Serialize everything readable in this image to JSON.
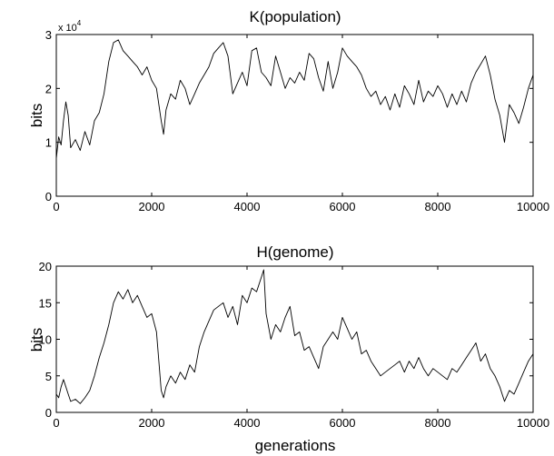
{
  "chart_data": [
    {
      "type": "line",
      "title": "K(population)",
      "xlabel": "",
      "ylabel": "bits",
      "y_multiplier_base": "x 10",
      "y_multiplier_exp": "4",
      "xlim": [
        0,
        10000
      ],
      "ylim": [
        0,
        30000
      ],
      "xticks": [
        0,
        2000,
        4000,
        6000,
        8000,
        10000
      ],
      "yticks": [
        0,
        10000,
        20000,
        30000
      ],
      "xtick_labels": [
        "0",
        "2000",
        "4000",
        "6000",
        "8000",
        "10000"
      ],
      "ytick_labels": [
        "0",
        "1",
        "2",
        "3"
      ],
      "grid": false,
      "series": [
        {
          "x": [
            0,
            50,
            100,
            150,
            200,
            250,
            300,
            400,
            500,
            600,
            700,
            800,
            900,
            1000,
            1100,
            1200,
            1300,
            1400,
            1500,
            1600,
            1700,
            1800,
            1900,
            2000,
            2100,
            2200,
            2250,
            2300,
            2400,
            2500,
            2600,
            2700,
            2800,
            2900,
            3000,
            3100,
            3200,
            3300,
            3400,
            3500,
            3600,
            3700,
            3800,
            3900,
            4000,
            4100,
            4200,
            4300,
            4400,
            4500,
            4600,
            4700,
            4800,
            4900,
            5000,
            5100,
            5200,
            5300,
            5400,
            5500,
            5600,
            5700,
            5800,
            5900,
            6000,
            6100,
            6200,
            6300,
            6400,
            6500,
            6600,
            6700,
            6800,
            6900,
            7000,
            7100,
            7200,
            7300,
            7400,
            7500,
            7600,
            7700,
            7800,
            7900,
            8000,
            8100,
            8200,
            8300,
            8400,
            8500,
            8600,
            8700,
            8800,
            8900,
            9000,
            9100,
            9200,
            9300,
            9400,
            9500,
            9600,
            9700,
            9800,
            9900,
            10000
          ],
          "y": [
            7000,
            11000,
            9500,
            14000,
            17500,
            15000,
            9000,
            10500,
            8500,
            12000,
            9500,
            14000,
            15500,
            19000,
            25000,
            28500,
            29000,
            27000,
            26000,
            25000,
            24000,
            22500,
            24000,
            21500,
            20000,
            14000,
            11500,
            16000,
            19000,
            18000,
            21500,
            20000,
            17000,
            19000,
            21000,
            22500,
            24000,
            26500,
            27500,
            28500,
            26000,
            19000,
            21000,
            23000,
            20500,
            27000,
            27500,
            23000,
            22000,
            20500,
            26000,
            23000,
            20000,
            22000,
            21000,
            23000,
            21500,
            26500,
            25500,
            22000,
            19500,
            25000,
            20000,
            23000,
            27500,
            26000,
            25000,
            24000,
            22500,
            20000,
            18500,
            19500,
            17000,
            18500,
            16000,
            19000,
            16500,
            20500,
            19000,
            17000,
            21500,
            17500,
            19500,
            18500,
            20500,
            19000,
            16500,
            19000,
            17000,
            19500,
            17500,
            21000,
            23000,
            24500,
            26000,
            22500,
            18000,
            15000,
            10000,
            17000,
            15500,
            13500,
            16500,
            20000,
            22500
          ]
        }
      ]
    },
    {
      "type": "line",
      "title": "H(genome)",
      "xlabel": "generations",
      "ylabel": "bits",
      "xlim": [
        0,
        10000
      ],
      "ylim": [
        0,
        20
      ],
      "xticks": [
        0,
        2000,
        4000,
        6000,
        8000,
        10000
      ],
      "yticks": [
        0,
        5,
        10,
        15,
        20
      ],
      "xtick_labels": [
        "0",
        "2000",
        "4000",
        "6000",
        "8000",
        "10000"
      ],
      "ytick_labels": [
        "0",
        "5",
        "10",
        "15",
        "20"
      ],
      "grid": false,
      "series": [
        {
          "x": [
            0,
            50,
            100,
            150,
            200,
            250,
            300,
            400,
            500,
            600,
            700,
            800,
            900,
            1000,
            1100,
            1200,
            1300,
            1400,
            1500,
            1600,
            1700,
            1800,
            1900,
            2000,
            2100,
            2150,
            2200,
            2250,
            2300,
            2400,
            2500,
            2600,
            2700,
            2800,
            2900,
            3000,
            3100,
            3200,
            3300,
            3400,
            3500,
            3600,
            3700,
            3800,
            3900,
            4000,
            4100,
            4200,
            4300,
            4350,
            4400,
            4500,
            4600,
            4700,
            4800,
            4900,
            5000,
            5100,
            5200,
            5300,
            5400,
            5500,
            5600,
            5700,
            5800,
            5900,
            6000,
            6100,
            6200,
            6300,
            6400,
            6500,
            6600,
            6700,
            6800,
            6900,
            7000,
            7100,
            7200,
            7300,
            7400,
            7500,
            7600,
            7700,
            7800,
            7900,
            8000,
            8100,
            8200,
            8300,
            8400,
            8500,
            8600,
            8700,
            8800,
            8900,
            9000,
            9100,
            9200,
            9300,
            9400,
            9500,
            9600,
            9700,
            9800,
            9900,
            10000
          ],
          "y": [
            2.5,
            2,
            3.5,
            4.5,
            3.5,
            2.5,
            1.5,
            1.8,
            1.2,
            2,
            3,
            5,
            7.5,
            9.5,
            12,
            15,
            16.5,
            15.5,
            16.8,
            15,
            16,
            14.5,
            13,
            13.5,
            11,
            7,
            3,
            2,
            3.5,
            5,
            4,
            5.5,
            4.5,
            6.5,
            5.5,
            9,
            11,
            12.5,
            14,
            14.5,
            15,
            13,
            14.5,
            12,
            16,
            15,
            17,
            16.5,
            18.5,
            19.5,
            13.5,
            10,
            12,
            11,
            13,
            14.5,
            10.5,
            11,
            8.5,
            9,
            7.5,
            6,
            9,
            10,
            11,
            10,
            13,
            11.5,
            10,
            11,
            8,
            8.5,
            7,
            6,
            5,
            5.5,
            6,
            6.5,
            7,
            5.5,
            7,
            6,
            7.5,
            6,
            5,
            6,
            5.5,
            5,
            4.5,
            6,
            5.5,
            6.5,
            7.5,
            8.5,
            9.5,
            7,
            8,
            6,
            5,
            3.5,
            1.5,
            3,
            2.5,
            4,
            5.5,
            7,
            8
          ]
        }
      ]
    }
  ]
}
